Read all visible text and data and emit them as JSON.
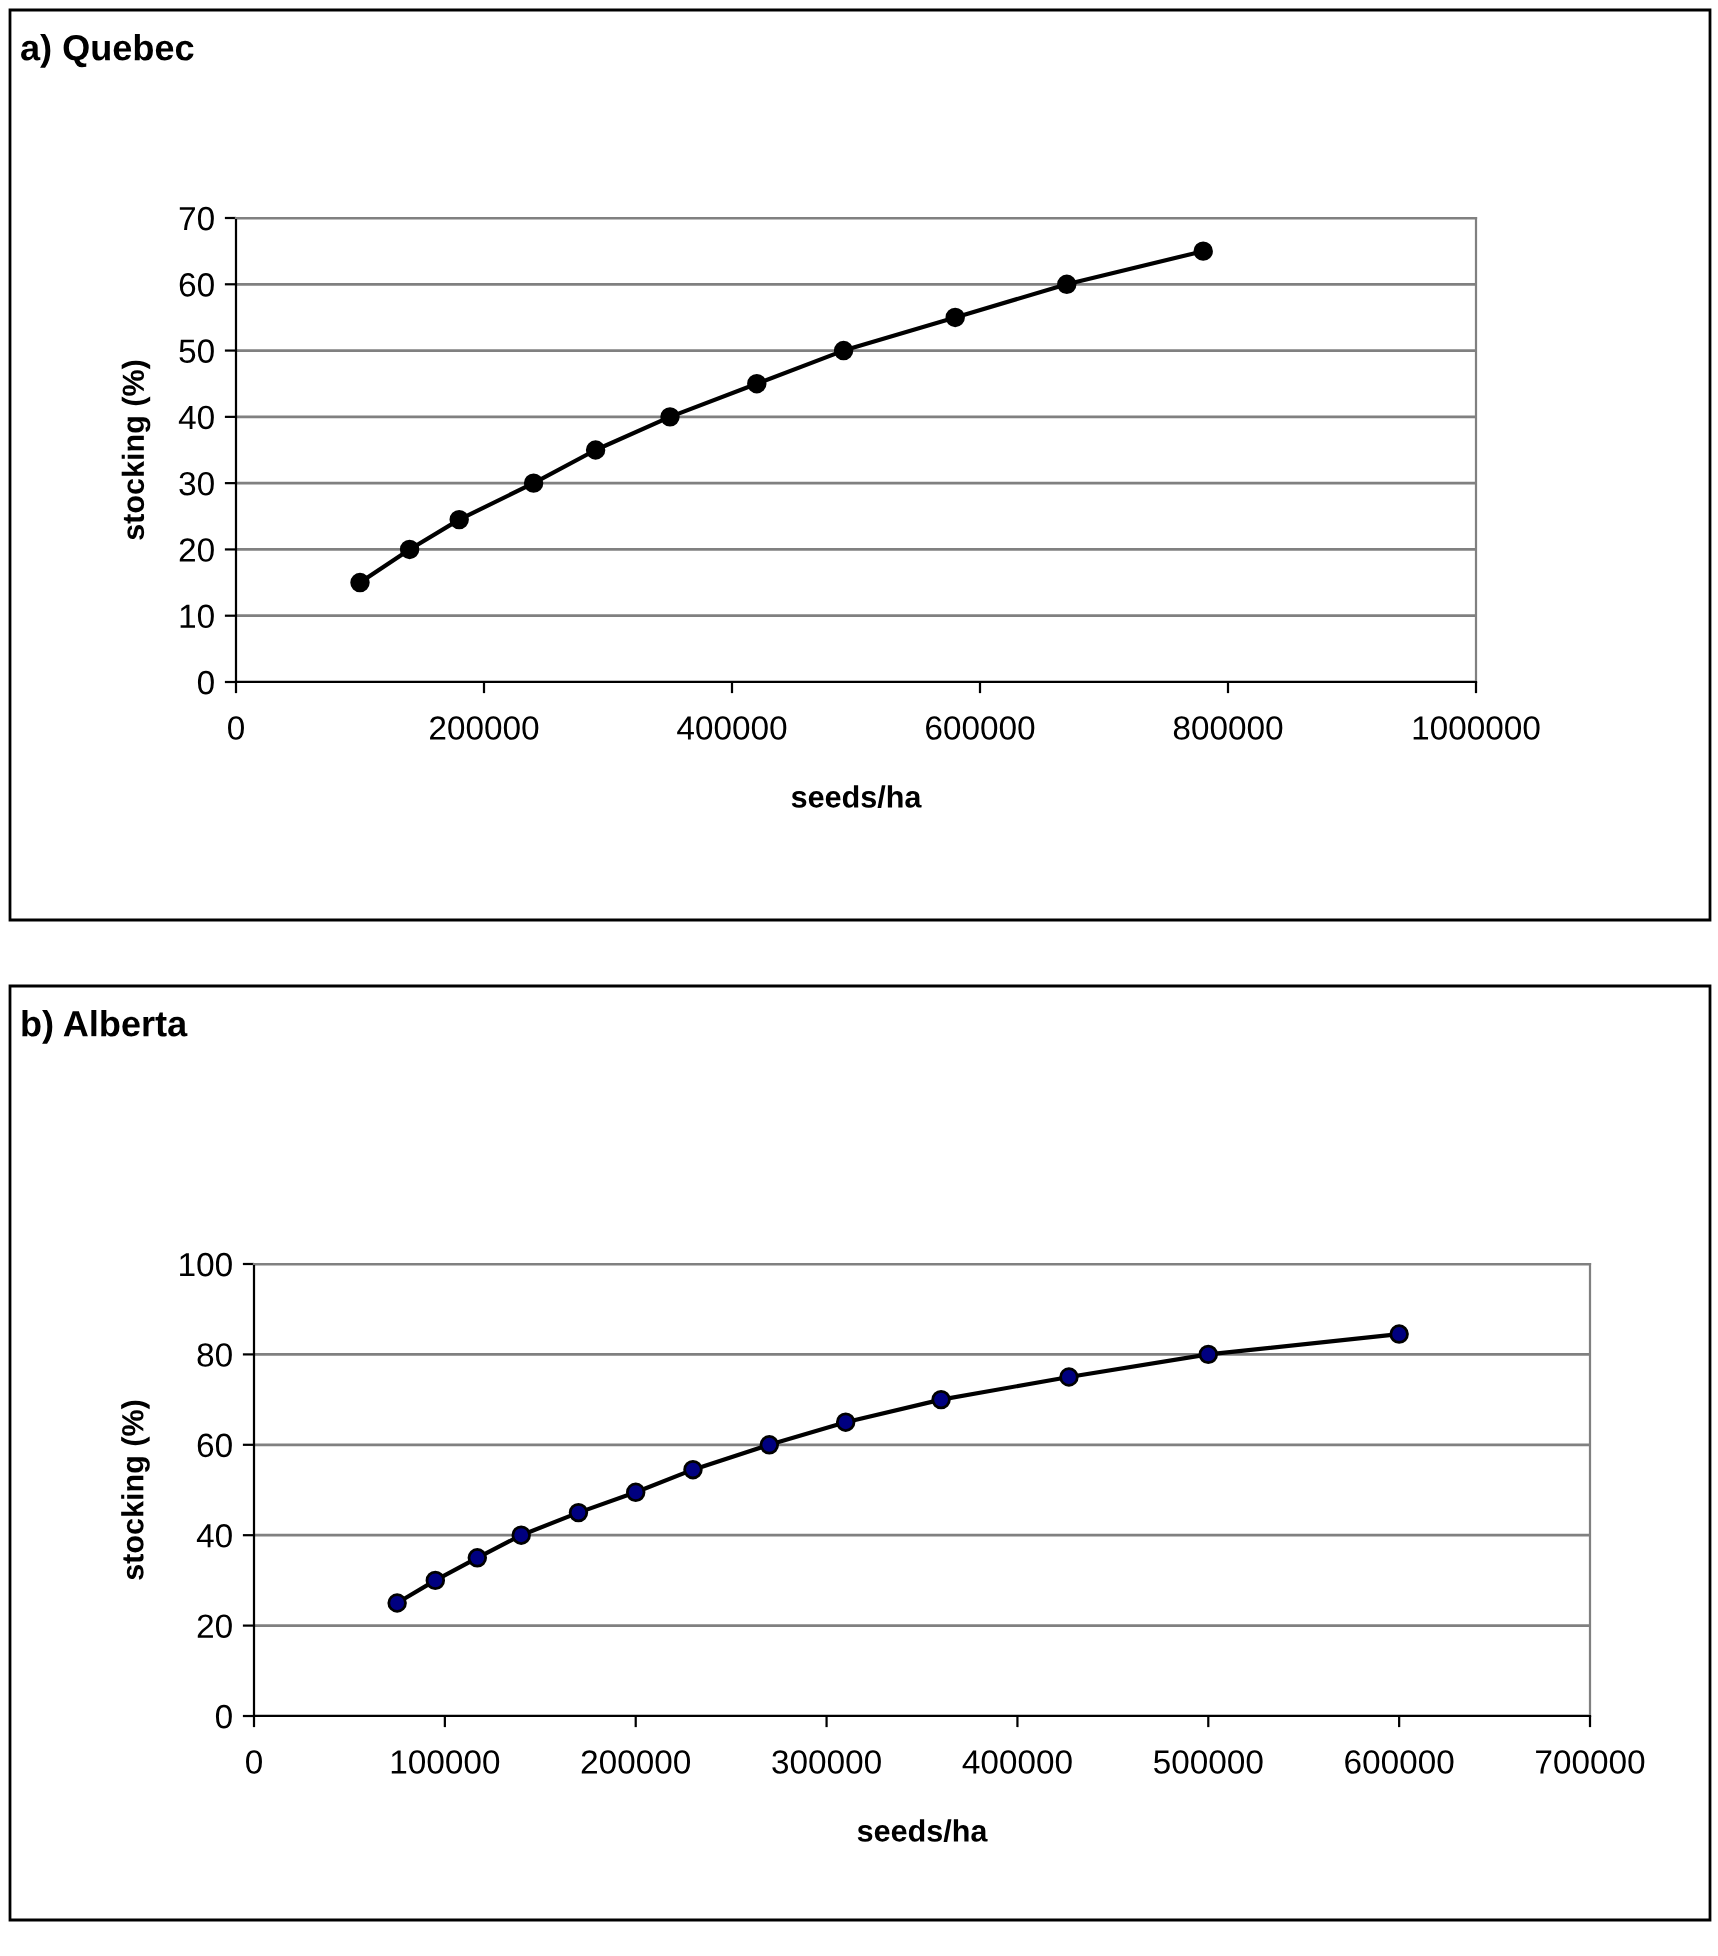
{
  "chart_data": [
    {
      "type": "line",
      "title": "a) Quebec",
      "xlabel": "seeds/ha",
      "ylabel": "stocking (%)",
      "xlim": [
        0,
        1000000
      ],
      "xticks": [
        0,
        200000,
        400000,
        600000,
        800000,
        1000000
      ],
      "ylim": [
        0,
        70
      ],
      "yticks": [
        0,
        10,
        20,
        30,
        40,
        50,
        60,
        70
      ],
      "grid": "y",
      "marker": "circle",
      "line_style": "solid",
      "series": [
        {
          "color": "#000000",
          "x": [
            100000,
            140000,
            180000,
            240000,
            290000,
            350000,
            420000,
            490000,
            580000,
            670000,
            780000
          ],
          "values": [
            15,
            20,
            24.5,
            30,
            35,
            40,
            45,
            50,
            55,
            60,
            65
          ]
        }
      ]
    },
    {
      "type": "line",
      "title": "b) Alberta",
      "xlabel": "seeds/ha",
      "ylabel": "stocking (%)",
      "xlim": [
        0,
        700000
      ],
      "xticks": [
        0,
        100000,
        200000,
        300000,
        400000,
        500000,
        600000,
        700000
      ],
      "ylim": [
        0,
        100
      ],
      "yticks": [
        0,
        20,
        40,
        60,
        80,
        100
      ],
      "grid": "y",
      "marker": "circle",
      "line_style": "solid",
      "series": [
        {
          "color": "#000080",
          "x": [
            75000,
            95000,
            117000,
            140000,
            170000,
            200000,
            230000,
            270000,
            310000,
            360000,
            427000,
            500000,
            600000
          ],
          "values": [
            25,
            30,
            35,
            40,
            45,
            49.5,
            54.5,
            60,
            65,
            70,
            75,
            80,
            84.5
          ]
        }
      ]
    }
  ]
}
